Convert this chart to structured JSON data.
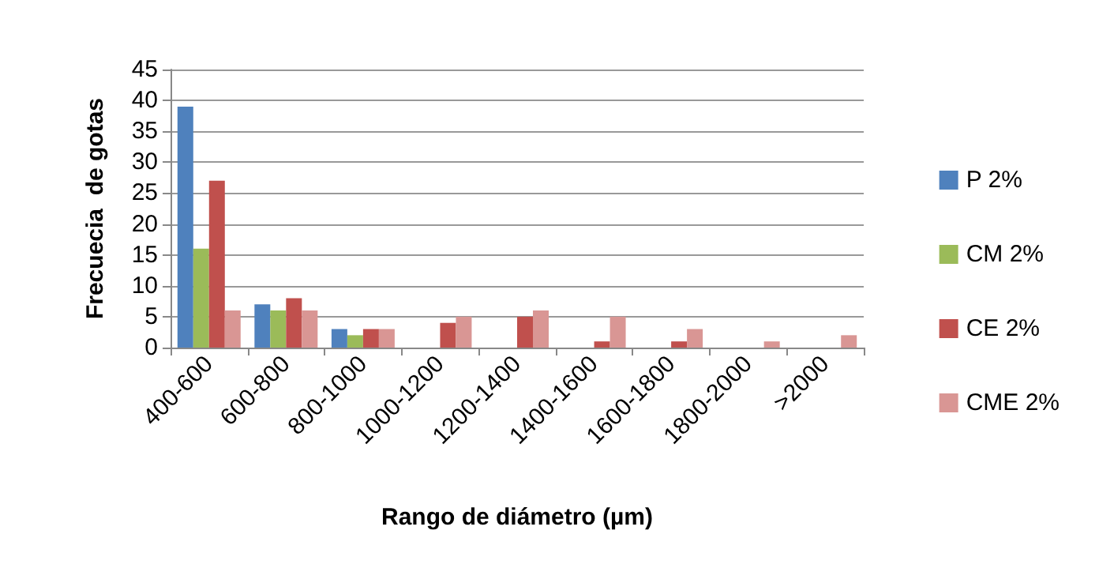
{
  "chart_data": {
    "type": "bar",
    "xlabel": "Rango de diámetro (µm)",
    "ylabel": "Frecuecia  de gotas",
    "categories": [
      "400-600",
      "600-800",
      "800-1000",
      "1000-1200",
      "1200-1400",
      "1400-1600",
      "1600-1800",
      "1800-2000",
      ">2000"
    ],
    "series": [
      {
        "name": "P 2%",
        "color": "#4f81bd",
        "values": [
          39,
          7,
          3,
          0,
          0,
          0,
          0,
          0,
          0
        ]
      },
      {
        "name": "CM 2%",
        "color": "#9bbb59",
        "values": [
          16,
          6,
          2,
          0,
          0,
          0,
          0,
          0,
          0
        ]
      },
      {
        "name": "CE 2%",
        "color": "#c0504d",
        "values": [
          27,
          8,
          3,
          4,
          5,
          1,
          1,
          0,
          0
        ]
      },
      {
        "name": "CME 2%",
        "color": "#d99694",
        "values": [
          6,
          6,
          3,
          5,
          6,
          5,
          3,
          1,
          2
        ]
      }
    ],
    "ylim": [
      0,
      45
    ],
    "yticks": [
      0,
      5,
      10,
      15,
      20,
      25,
      30,
      35,
      40,
      45
    ],
    "grid": "y",
    "legend": "right"
  }
}
